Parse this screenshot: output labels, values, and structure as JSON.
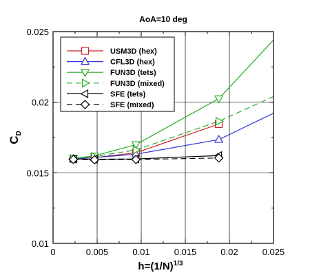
{
  "chart_data": {
    "type": "line",
    "title": "AoA=10 deg",
    "xlabel": {
      "main": "h=(1/N)",
      "sup": "1/3"
    },
    "ylabel": {
      "main": "C",
      "sub": "D"
    },
    "xlim": [
      0,
      0.025
    ],
    "ylim": [
      0.01,
      0.025
    ],
    "xticks": [
      0,
      0.005,
      0.01,
      0.015,
      0.02,
      0.025
    ],
    "xtick_labels": [
      "0",
      "0.005",
      "0.01",
      "0.015",
      "0.02",
      "0.025"
    ],
    "yticks": [
      0.01,
      0.015,
      0.02,
      0.025
    ],
    "ytick_labels": [
      "0.01",
      "0.015",
      "0.02",
      "0.025"
    ],
    "grid": true,
    "legend_position": "top-left",
    "series": [
      {
        "name": "USM3D (hex)",
        "color": "#cc2222",
        "marker": "square",
        "dash": "solid",
        "points": [
          [
            0.0023,
            0.01598
          ],
          [
            0.0047,
            0.01608
          ],
          [
            0.0094,
            0.01642
          ],
          [
            0.0188,
            0.01845
          ]
        ]
      },
      {
        "name": "CFL3D (hex)",
        "color": "#3333dd",
        "marker": "triangle-up",
        "dash": "solid",
        "points": [
          [
            0.0023,
            0.01598
          ],
          [
            0.0047,
            0.01608
          ],
          [
            0.0094,
            0.01632
          ],
          [
            0.0188,
            0.01735
          ],
          [
            0.025,
            0.01922
          ]
        ]
      },
      {
        "name": "FUN3D (tets)",
        "color": "#22aa22",
        "marker": "triangle-down",
        "dash": "solid",
        "points": [
          [
            0.0023,
            0.01603
          ],
          [
            0.0047,
            0.0162
          ],
          [
            0.0094,
            0.017
          ],
          [
            0.0188,
            0.02025
          ],
          [
            0.025,
            0.0244
          ]
        ]
      },
      {
        "name": "FUN3D (mixed)",
        "color": "#22aa22",
        "marker": "triangle-right",
        "dash": "dashed",
        "points": [
          [
            0.0023,
            0.016
          ],
          [
            0.0047,
            0.01615
          ],
          [
            0.0094,
            0.01662
          ],
          [
            0.0188,
            0.01865
          ],
          [
            0.025,
            0.0204
          ]
        ]
      },
      {
        "name": "SFE (tets)",
        "color": "#000000",
        "marker": "triangle-left",
        "dash": "solid",
        "points": [
          [
            0.0023,
            0.01598
          ],
          [
            0.0047,
            0.01596
          ],
          [
            0.0094,
            0.01598
          ],
          [
            0.0188,
            0.01622
          ]
        ]
      },
      {
        "name": "SFE (mixed)",
        "color": "#000000",
        "marker": "diamond",
        "dash": "dashed",
        "points": [
          [
            0.0023,
            0.01595
          ],
          [
            0.0047,
            0.01592
          ],
          [
            0.0094,
            0.01594
          ],
          [
            0.0188,
            0.01605
          ]
        ]
      }
    ]
  }
}
